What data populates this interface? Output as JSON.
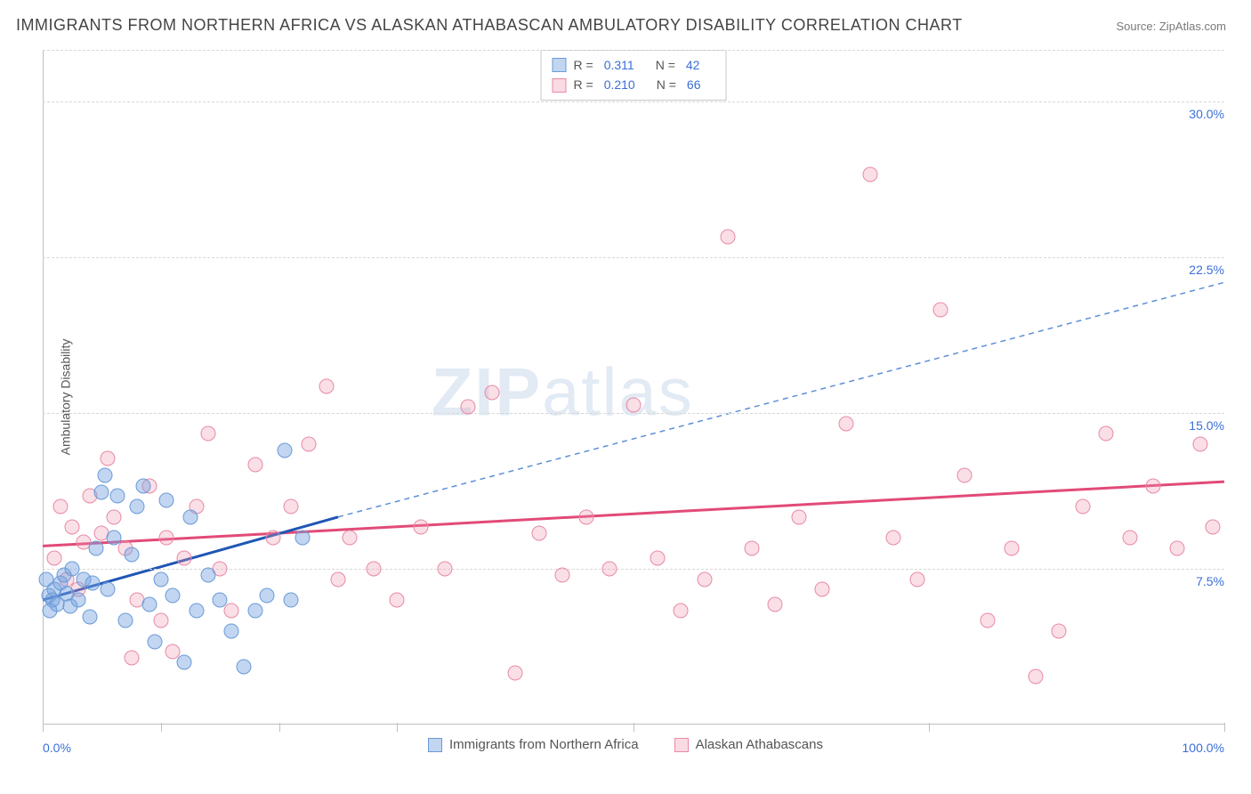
{
  "title": "IMMIGRANTS FROM NORTHERN AFRICA VS ALASKAN ATHABASCAN AMBULATORY DISABILITY CORRELATION CHART",
  "source": "Source: ZipAtlas.com",
  "y_axis_label": "Ambulatory Disability",
  "watermark_bold": "ZIP",
  "watermark_light": "atlas",
  "chart": {
    "type": "scatter",
    "x_min": 0,
    "x_max": 100,
    "y_min": 0,
    "y_max": 32.5,
    "background_color": "#ffffff",
    "grid_color": "#d8d8d8",
    "grid_dash": true,
    "y_grid_values": [
      7.5,
      15.0,
      22.5,
      30.0
    ],
    "y_tick_labels": [
      "7.5%",
      "15.0%",
      "22.5%",
      "30.0%"
    ],
    "x_ticks": [
      0,
      10,
      20,
      30,
      50,
      75,
      100
    ],
    "x_min_label": "0.0%",
    "x_max_label": "100.0%",
    "tick_label_color": "#3b6fd6",
    "tick_label_fontsize": 14,
    "axis_label_fontsize": 14,
    "axis_label_color": "#555555",
    "title_fontsize": 18,
    "title_color": "#444444"
  },
  "series_blue": {
    "name": "Immigrants from Northern Africa",
    "marker_fill": "rgba(120,165,225,0.45)",
    "marker_stroke": "#6a9ad8",
    "marker_size": 17,
    "R": "0.311",
    "N": "42",
    "trend": {
      "solid": {
        "x1": 0,
        "y1": 6.0,
        "x2": 25,
        "y2": 10.0,
        "color": "#1f56b5",
        "width": 3
      },
      "dashed": {
        "x1": 25,
        "y1": 10.0,
        "x2": 100,
        "y2": 21.3,
        "color": "#5d8fd8",
        "width": 1.5,
        "dash": "6 5"
      }
    },
    "points": [
      [
        0.5,
        6.2
      ],
      [
        0.8,
        6.0
      ],
      [
        1.0,
        6.5
      ],
      [
        1.2,
        5.8
      ],
      [
        1.5,
        6.8
      ],
      [
        1.8,
        7.2
      ],
      [
        0.3,
        7.0
      ],
      [
        0.6,
        5.5
      ],
      [
        2.0,
        6.3
      ],
      [
        2.3,
        5.7
      ],
      [
        2.5,
        7.5
      ],
      [
        3.0,
        6.0
      ],
      [
        3.5,
        7.0
      ],
      [
        4.0,
        5.2
      ],
      [
        4.2,
        6.8
      ],
      [
        4.5,
        8.5
      ],
      [
        5.0,
        11.2
      ],
      [
        5.3,
        12.0
      ],
      [
        5.5,
        6.5
      ],
      [
        6.0,
        9.0
      ],
      [
        6.3,
        11.0
      ],
      [
        7.0,
        5.0
      ],
      [
        7.5,
        8.2
      ],
      [
        8.0,
        10.5
      ],
      [
        8.5,
        11.5
      ],
      [
        9.0,
        5.8
      ],
      [
        9.5,
        4.0
      ],
      [
        10.0,
        7.0
      ],
      [
        10.5,
        10.8
      ],
      [
        11.0,
        6.2
      ],
      [
        12.0,
        3.0
      ],
      [
        12.5,
        10.0
      ],
      [
        13.0,
        5.5
      ],
      [
        14.0,
        7.2
      ],
      [
        15.0,
        6.0
      ],
      [
        16.0,
        4.5
      ],
      [
        17.0,
        2.8
      ],
      [
        18.0,
        5.5
      ],
      [
        19.0,
        6.2
      ],
      [
        20.5,
        13.2
      ],
      [
        21.0,
        6.0
      ],
      [
        22.0,
        9.0
      ]
    ]
  },
  "series_pink": {
    "name": "Alaskan Athabascans",
    "marker_fill": "rgba(240,150,175,0.30)",
    "marker_stroke": "#e88aa3",
    "marker_size": 17,
    "R": "0.210",
    "N": "66",
    "trend": {
      "solid": {
        "x1": 0,
        "y1": 8.6,
        "x2": 100,
        "y2": 11.7,
        "color": "#e24a78",
        "width": 3
      }
    },
    "points": [
      [
        1.0,
        8.0
      ],
      [
        1.5,
        10.5
      ],
      [
        2.0,
        7.0
      ],
      [
        2.5,
        9.5
      ],
      [
        3.0,
        6.5
      ],
      [
        3.5,
        8.8
      ],
      [
        4.0,
        11.0
      ],
      [
        5.0,
        9.2
      ],
      [
        5.5,
        12.8
      ],
      [
        6.0,
        10.0
      ],
      [
        7.0,
        8.5
      ],
      [
        7.5,
        3.2
      ],
      [
        8.0,
        6.0
      ],
      [
        9.0,
        11.5
      ],
      [
        10.0,
        5.0
      ],
      [
        10.5,
        9.0
      ],
      [
        11.0,
        3.5
      ],
      [
        12.0,
        8.0
      ],
      [
        13.0,
        10.5
      ],
      [
        14.0,
        14.0
      ],
      [
        15.0,
        7.5
      ],
      [
        16.0,
        5.5
      ],
      [
        18.0,
        12.5
      ],
      [
        19.5,
        9.0
      ],
      [
        21.0,
        10.5
      ],
      [
        22.5,
        13.5
      ],
      [
        24.0,
        16.3
      ],
      [
        25.0,
        7.0
      ],
      [
        26.0,
        9.0
      ],
      [
        28.0,
        7.5
      ],
      [
        30.0,
        6.0
      ],
      [
        32.0,
        9.5
      ],
      [
        34.0,
        7.5
      ],
      [
        36.0,
        15.3
      ],
      [
        38.0,
        16.0
      ],
      [
        40.0,
        2.5
      ],
      [
        42.0,
        9.2
      ],
      [
        44.0,
        7.2
      ],
      [
        46.0,
        10.0
      ],
      [
        48.0,
        7.5
      ],
      [
        50.0,
        15.4
      ],
      [
        52.0,
        8.0
      ],
      [
        54.0,
        5.5
      ],
      [
        56.0,
        7.0
      ],
      [
        58.0,
        23.5
      ],
      [
        60.0,
        8.5
      ],
      [
        62.0,
        5.8
      ],
      [
        64.0,
        10.0
      ],
      [
        66.0,
        6.5
      ],
      [
        68.0,
        14.5
      ],
      [
        70.0,
        26.5
      ],
      [
        72.0,
        9.0
      ],
      [
        74.0,
        7.0
      ],
      [
        76.0,
        20.0
      ],
      [
        78.0,
        12.0
      ],
      [
        80.0,
        5.0
      ],
      [
        82.0,
        8.5
      ],
      [
        84.0,
        2.3
      ],
      [
        86.0,
        4.5
      ],
      [
        88.0,
        10.5
      ],
      [
        90.0,
        14.0
      ],
      [
        92.0,
        9.0
      ],
      [
        94.0,
        11.5
      ],
      [
        96.0,
        8.5
      ],
      [
        98.0,
        13.5
      ],
      [
        99.0,
        9.5
      ]
    ]
  },
  "legend_top": {
    "R_label": "R =",
    "N_label": "N ="
  },
  "legend_bottom": {
    "blue_label": "Immigrants from Northern Africa",
    "pink_label": "Alaskan Athabascans"
  }
}
